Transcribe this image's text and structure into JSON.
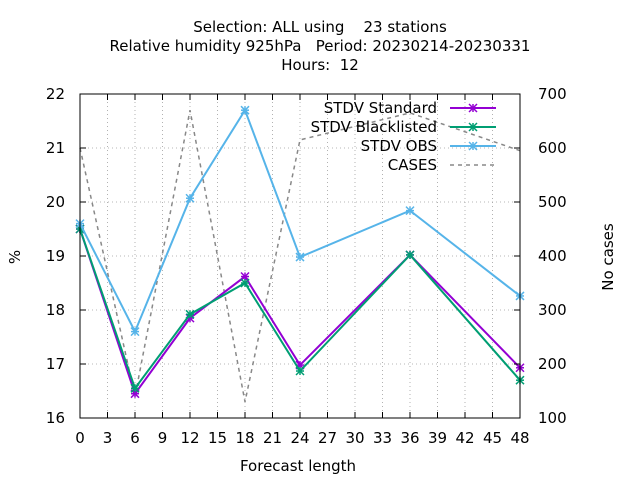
{
  "title_lines": [
    "Selection: ALL using    23 stations",
    "Relative humidity 925hPa   Period: 20230214-20230331",
    "Hours:  12"
  ],
  "chart_data": {
    "type": "line",
    "xlabel": "Forecast length",
    "ylabel": "%",
    "y2label": "No cases",
    "xlim": [
      0,
      48
    ],
    "ylim": [
      16,
      22
    ],
    "y2lim": [
      100,
      700
    ],
    "xticks": [
      0,
      3,
      6,
      9,
      12,
      15,
      18,
      21,
      24,
      27,
      30,
      33,
      36,
      39,
      42,
      45,
      48
    ],
    "yticks": [
      16,
      17,
      18,
      19,
      20,
      21,
      22
    ],
    "y2ticks": [
      100,
      200,
      300,
      400,
      500,
      600,
      700
    ],
    "grid": true,
    "legend_position": "top-right",
    "x": [
      0,
      6,
      12,
      18,
      24,
      36,
      48
    ],
    "series": [
      {
        "name": "STDV Standard",
        "axis": "y",
        "color": "#9400d3",
        "style": "solid",
        "marker": "x",
        "values": [
          19.5,
          16.45,
          17.85,
          18.62,
          16.98,
          19.02,
          16.93
        ]
      },
      {
        "name": "STDV Blacklisted",
        "axis": "y",
        "color": "#009e73",
        "style": "solid",
        "marker": "x",
        "values": [
          19.5,
          16.55,
          17.92,
          18.5,
          16.87,
          19.02,
          16.7
        ]
      },
      {
        "name": "STDV OBS",
        "axis": "y",
        "color": "#56b4e9",
        "style": "solid",
        "marker": "x",
        "values": [
          19.6,
          17.6,
          20.07,
          21.7,
          18.98,
          19.84,
          18.26
        ]
      },
      {
        "name": "CASES",
        "axis": "y2",
        "color": "#888888",
        "style": "dashed",
        "marker": "none",
        "values": [
          600,
          140,
          670,
          130,
          615,
          665,
          595
        ]
      }
    ]
  }
}
